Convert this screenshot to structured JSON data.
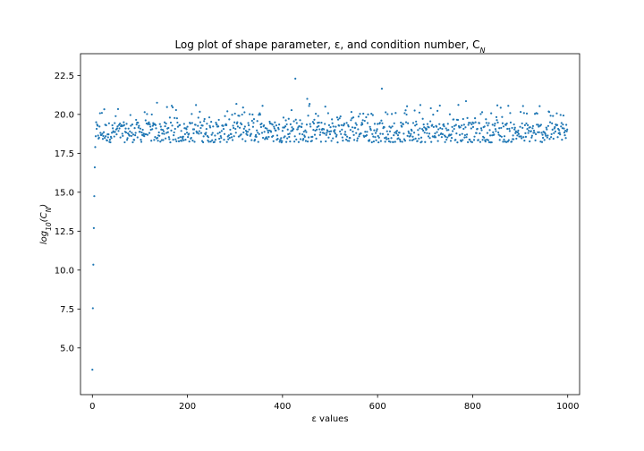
{
  "chart_data": {
    "type": "scatter",
    "title": "Log plot of shape parameter, ε, and condition number, C",
    "title_sub": "N",
    "xlabel": "ε values",
    "ylabel_prefix": "log",
    "ylabel_base": "10",
    "ylabel_arg": "C",
    "ylabel_arg_sub": "N",
    "xlim": [
      -25,
      1025
    ],
    "ylim": [
      2.0,
      23.9
    ],
    "xticks": [
      0,
      200,
      400,
      600,
      800,
      1000
    ],
    "xtick_labels": [
      "0",
      "200",
      "400",
      "600",
      "800",
      "1000"
    ],
    "yticks": [
      5.0,
      7.5,
      10.0,
      12.5,
      15.0,
      17.5,
      20.0,
      22.5
    ],
    "ytick_labels": [
      "5.0",
      "7.5",
      "10.0",
      "12.5",
      "15.0",
      "17.5",
      "20.0",
      "22.5"
    ],
    "marker_color": "#1f77b4",
    "series": [
      {
        "x_start": 0,
        "x_step": 1,
        "head_y": [
          3.6,
          7.55,
          10.35,
          12.7,
          14.75,
          16.6,
          17.9
        ],
        "tail_count": 993,
        "tail_y_range": [
          17.95,
          20.7
        ],
        "outliers": [
          {
            "x": 427,
            "y": 22.3
          },
          {
            "x": 609,
            "y": 21.65
          },
          {
            "x": 452,
            "y": 21.0
          },
          {
            "x": 786,
            "y": 20.85
          },
          {
            "x": 136,
            "y": 20.75
          },
          {
            "x": 690,
            "y": 20.6
          },
          {
            "x": 875,
            "y": 20.55
          },
          {
            "x": 218,
            "y": 20.6
          },
          {
            "x": 358,
            "y": 20.55
          },
          {
            "x": 490,
            "y": 20.5
          }
        ]
      }
    ]
  }
}
